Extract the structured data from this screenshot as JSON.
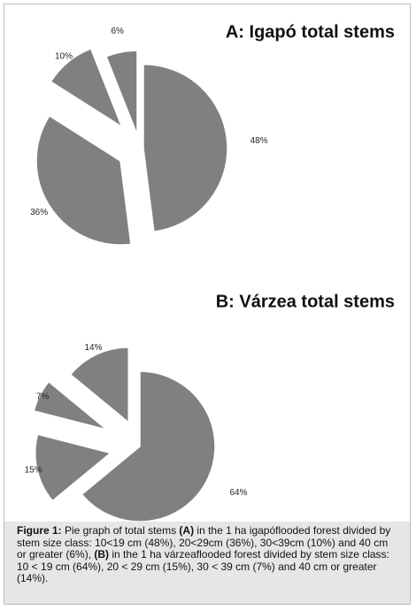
{
  "chart_data": [
    {
      "type": "pie",
      "title": "A: Igapó total stems",
      "color": "#808080",
      "values": [
        48,
        36,
        10,
        6
      ],
      "value_labels": [
        "48%",
        "36%",
        "10%",
        "6%"
      ]
    },
    {
      "type": "pie",
      "title": "B: Várzea total stems",
      "color": "#808080",
      "values": [
        64,
        15,
        7,
        14
      ],
      "value_labels": [
        "64%",
        "15%",
        "7%",
        "14%"
      ]
    }
  ],
  "caption": [
    {
      "text": "Figure 1:",
      "bold": true
    },
    {
      "text": " Pie graph of total stems ",
      "bold": false
    },
    {
      "text": "(A)",
      "bold": true
    },
    {
      "text": " in the 1 ha igapóflooded forest divided by stem size class: 10<19 cm (48%), 20<29cm (36%), 30<39cm (10%) and 40 cm or greater (6%), ",
      "bold": false
    },
    {
      "text": "(B)",
      "bold": true
    },
    {
      "text": " in the 1 ha várzeaflooded forest divided by stem size class: 10 < 19 cm (64%), 20 < 29 cm (15%), 30 < 39 cm (7%) and 40 cm or greater (14%).",
      "bold": false
    }
  ]
}
